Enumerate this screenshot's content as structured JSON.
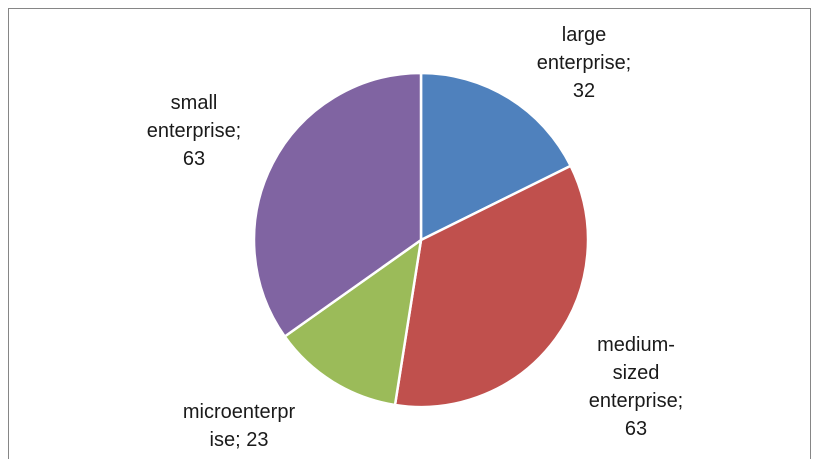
{
  "chart_data": {
    "type": "pie",
    "categories": [
      "large enterprise",
      "medium-sized enterprise",
      "microenterprise",
      "small enterprise"
    ],
    "values": [
      32,
      63,
      23,
      63
    ],
    "colors": [
      "#4F81BD",
      "#C0504D",
      "#9BBB59",
      "#8064A2"
    ],
    "labels": [
      {
        "lines": [
          "large",
          "enterprise;",
          "32"
        ]
      },
      {
        "lines": [
          "medium-",
          "sized",
          "enterprise;",
          "63"
        ]
      },
      {
        "lines": [
          "microenterpr",
          "ise; 23"
        ]
      },
      {
        "lines": [
          "small",
          "enterprise;",
          "63"
        ]
      }
    ],
    "start_angle_deg": 0,
    "direction": "clockwise"
  }
}
